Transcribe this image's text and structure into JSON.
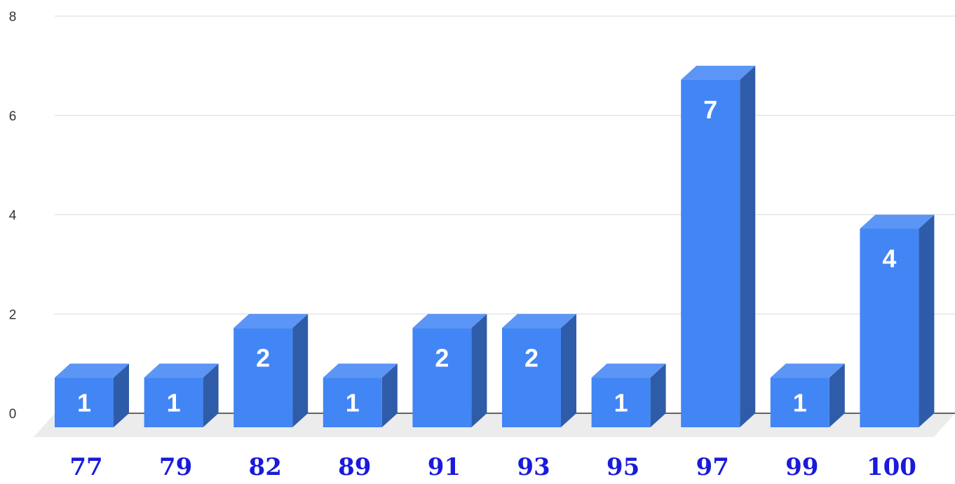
{
  "chart_data": {
    "type": "bar",
    "style": "3d",
    "categories": [
      "77",
      "79",
      "82",
      "89",
      "91",
      "93",
      "95",
      "97",
      "99",
      "100"
    ],
    "values": [
      1,
      1,
      2,
      1,
      2,
      2,
      1,
      7,
      1,
      4
    ],
    "data_labels": [
      "1",
      "1",
      "2",
      "1",
      "2",
      "2",
      "1",
      "7",
      "1",
      "4"
    ],
    "yticks": [
      "0",
      "2",
      "4",
      "6",
      "8"
    ],
    "ylim": [
      0,
      8
    ],
    "grid": true,
    "legend": "none",
    "title": "",
    "xlabel": "",
    "ylabel": "",
    "colors": {
      "bar_front": "#4285f4",
      "bar_top": "#5b95f5",
      "bar_side": "#2f5ca8",
      "gridline": "#d9d9d9",
      "baseline": "#333333",
      "floor": "#ececec",
      "xtick_text": "#1a1adb",
      "ytick_text": "#333333",
      "data_label_text": "#ffffff"
    }
  }
}
